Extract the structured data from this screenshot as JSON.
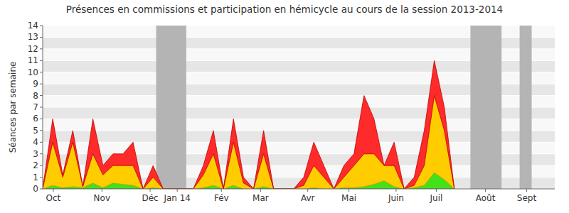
{
  "chart_data": {
    "type": "area",
    "title": "Présences en commissions et participation en hémicycle au cours de la session 2013-2014",
    "y_label": "Séances par semaine",
    "stacked": true,
    "grid": true,
    "x": [
      0,
      1,
      2,
      3,
      4,
      5,
      6,
      7,
      8,
      9,
      10,
      11,
      12,
      13,
      14,
      15,
      16,
      17,
      18,
      19,
      20,
      21,
      22,
      23,
      24,
      25,
      26,
      27,
      28,
      29,
      30,
      31,
      32,
      33,
      34,
      35,
      36,
      37,
      38,
      39,
      40,
      41
    ],
    "series": [
      {
        "color": "#44e01a",
        "values": [
          0,
          0.3,
          0.1,
          0.2,
          0.1,
          0.5,
          0.1,
          0.5,
          0.4,
          0.3,
          0,
          0.1,
          0,
          0,
          0,
          0,
          0.1,
          0.3,
          0,
          0.3,
          0,
          0,
          0.2,
          0,
          0,
          0,
          0,
          0.1,
          0,
          0,
          0.1,
          0.1,
          0.2,
          0.4,
          0.7,
          0.2,
          0,
          0.1,
          0.3,
          1.4,
          0.8,
          0
        ]
      },
      {
        "color": "#ffcc00",
        "values": [
          0,
          3.7,
          0.9,
          3.8,
          0.1,
          2.5,
          1.1,
          1.5,
          1.6,
          1.7,
          0,
          0.9,
          0,
          0,
          0,
          0,
          1.1,
          2.7,
          0,
          3.7,
          0.5,
          0,
          2.8,
          0,
          0,
          0,
          0.3,
          1.9,
          1,
          0,
          0.9,
          1.9,
          2.8,
          2.6,
          1.3,
          1.8,
          0,
          0.2,
          1.7,
          6.6,
          4.2,
          0
        ]
      },
      {
        "color": "#ff2a2a",
        "values": [
          0,
          2,
          0.2,
          1,
          0,
          3,
          0.8,
          1,
          1,
          2,
          0,
          1,
          0,
          0,
          0,
          0,
          0.8,
          2,
          0,
          2,
          0.5,
          0,
          2,
          0,
          0,
          0,
          0.7,
          2,
          1,
          0,
          1,
          1,
          5,
          3,
          0,
          2,
          0,
          0.7,
          3,
          3,
          2,
          0
        ]
      }
    ],
    "shaded_periods": [
      [
        11.3,
        14.3
      ],
      [
        42.6,
        45.7
      ],
      [
        47.5,
        48.7
      ]
    ],
    "xlim": [
      0,
      51
    ],
    "xticks": [
      {
        "value": 1.06,
        "label": "Oct"
      },
      {
        "value": 5.9,
        "label": "Nov"
      },
      {
        "value": 10.7,
        "label": "Déc"
      },
      {
        "value": 13.4,
        "label": "Jan 14"
      },
      {
        "value": 17.8,
        "label": "Fév"
      },
      {
        "value": 21.7,
        "label": "Mar"
      },
      {
        "value": 26.4,
        "label": "Avr"
      },
      {
        "value": 30.5,
        "label": "Mai"
      },
      {
        "value": 35.2,
        "label": "Juin"
      },
      {
        "value": 39.2,
        "label": "Juil"
      },
      {
        "value": 44.1,
        "label": "Août"
      },
      {
        "value": 48.2,
        "label": "Sept"
      }
    ],
    "ylim": [
      0,
      14
    ],
    "yticks": [
      0,
      1,
      2,
      3,
      4,
      5,
      6,
      7,
      8,
      9,
      10,
      11,
      12,
      13,
      14
    ]
  }
}
